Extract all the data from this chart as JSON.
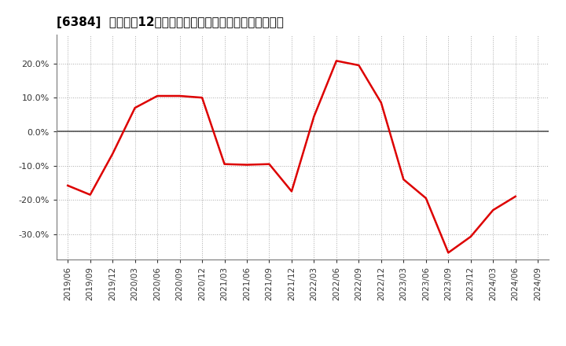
{
  "title": "[6384]  売上高の12か月移動合計の対前年同期増減率の推移",
  "line_color": "#dd0000",
  "background_color": "#ffffff",
  "plot_bg_color": "#ffffff",
  "grid_color": "#aaaaaa",
  "ylim": [
    -0.375,
    0.285
  ],
  "yticks": [
    -0.3,
    -0.2,
    -0.1,
    0.0,
    0.1,
    0.2
  ],
  "dates": [
    "2019/06",
    "2019/09",
    "2019/12",
    "2020/03",
    "2020/06",
    "2020/09",
    "2020/12",
    "2021/03",
    "2021/06",
    "2021/09",
    "2021/12",
    "2022/03",
    "2022/06",
    "2022/09",
    "2022/12",
    "2023/03",
    "2023/06",
    "2023/09",
    "2023/12",
    "2024/03",
    "2024/06",
    "2024/09"
  ],
  "values": [
    -0.158,
    -0.185,
    -0.065,
    0.07,
    0.105,
    0.105,
    0.1,
    -0.095,
    -0.097,
    -0.095,
    -0.175,
    0.045,
    0.208,
    0.195,
    0.085,
    -0.14,
    -0.195,
    -0.355,
    -0.308,
    -0.23,
    -0.19,
    null
  ],
  "zero_line_color": "#555555",
  "title_fontsize": 11,
  "tick_fontsize": 8,
  "xtick_fontsize": 7.5
}
